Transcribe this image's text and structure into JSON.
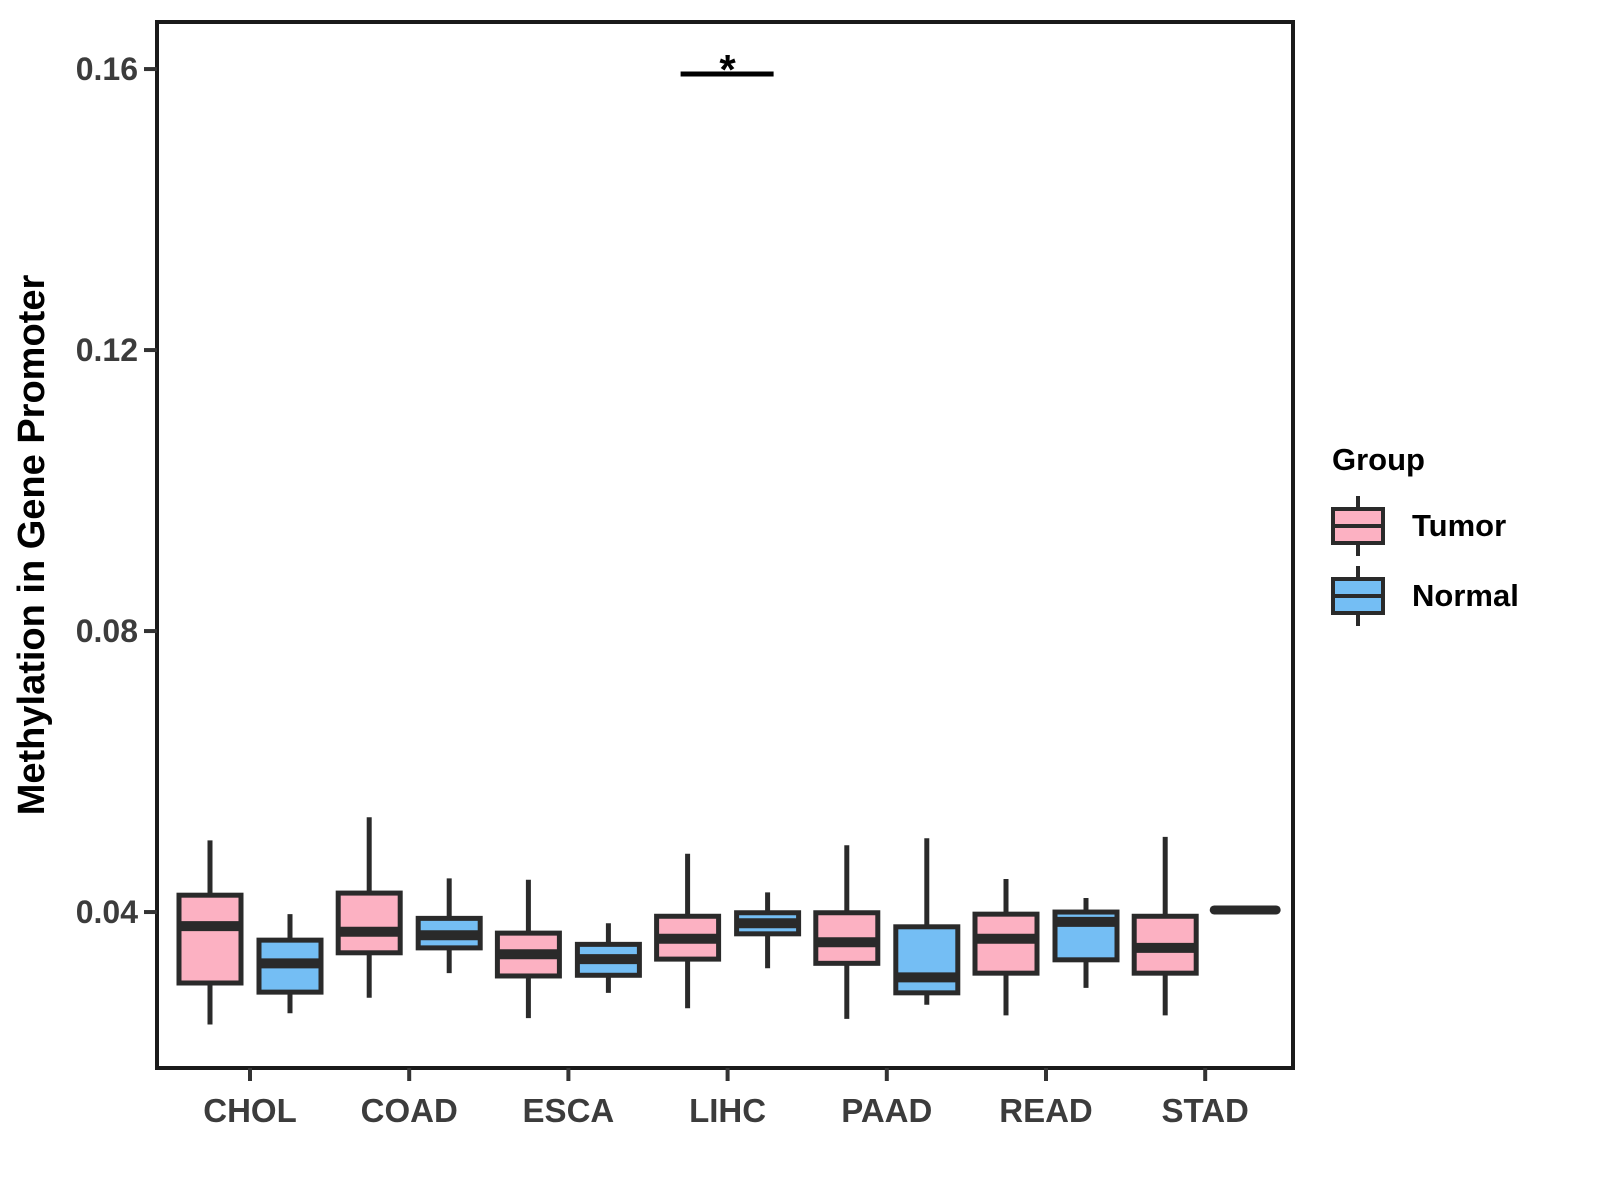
{
  "figure": {
    "background": "#FFFFFF"
  },
  "chart_data": {
    "type": "grouped_boxplot",
    "title": "",
    "xlabel": "",
    "ylabel": "Methylation in Gene Promoter",
    "categories": [
      "CHOL",
      "COAD",
      "ESCA",
      "LIHC",
      "PAAD",
      "READ",
      "STAD"
    ],
    "y_ticks": [
      0.04,
      0.08,
      0.12,
      0.16
    ],
    "y_tick_labels": [
      "0.04",
      "0.08",
      "0.12",
      "0.16"
    ],
    "ylim": [
      0.0178,
      0.1667
    ],
    "grid": false,
    "legend": {
      "title": "Group",
      "position": "right",
      "entries": [
        {
          "label": "Tumor",
          "color": "#FCB1C2"
        },
        {
          "label": "Normal",
          "color": "#74BEF4"
        }
      ]
    },
    "series": [
      {
        "name": "Tumor",
        "color": "#FCB1C2",
        "boxes": [
          {
            "category": "CHOL",
            "min": 0.024,
            "q1": 0.0299,
            "median": 0.038,
            "q3": 0.0424,
            "max": 0.0502
          },
          {
            "category": "COAD",
            "min": 0.0278,
            "q1": 0.0342,
            "median": 0.0372,
            "q3": 0.0427,
            "max": 0.0535
          },
          {
            "category": "ESCA",
            "min": 0.0249,
            "q1": 0.0309,
            "median": 0.034,
            "q3": 0.037,
            "max": 0.0446
          },
          {
            "category": "LIHC",
            "min": 0.0263,
            "q1": 0.0333,
            "median": 0.0362,
            "q3": 0.0394,
            "max": 0.0483
          },
          {
            "category": "PAAD",
            "min": 0.0248,
            "q1": 0.0327,
            "median": 0.0357,
            "q3": 0.0399,
            "max": 0.0495
          },
          {
            "category": "READ",
            "min": 0.0253,
            "q1": 0.0313,
            "median": 0.0362,
            "q3": 0.0397,
            "max": 0.0447
          },
          {
            "category": "STAD",
            "min": 0.0253,
            "q1": 0.0313,
            "median": 0.0349,
            "q3": 0.0394,
            "max": 0.0507
          }
        ]
      },
      {
        "name": "Normal",
        "color": "#74BEF4",
        "boxes": [
          {
            "category": "CHOL",
            "min": 0.0256,
            "q1": 0.0286,
            "median": 0.0327,
            "q3": 0.036,
            "max": 0.0397
          },
          {
            "category": "COAD",
            "min": 0.0313,
            "q1": 0.0349,
            "median": 0.0367,
            "q3": 0.0391,
            "max": 0.0448
          },
          {
            "category": "ESCA",
            "min": 0.0285,
            "q1": 0.031,
            "median": 0.0333,
            "q3": 0.0354,
            "max": 0.0384
          },
          {
            "category": "LIHC",
            "min": 0.032,
            "q1": 0.0369,
            "median": 0.0384,
            "q3": 0.0399,
            "max": 0.0428
          },
          {
            "category": "PAAD",
            "min": 0.0268,
            "q1": 0.0285,
            "median": 0.0307,
            "q3": 0.0379,
            "max": 0.0505
          },
          {
            "category": "READ",
            "min": 0.0292,
            "q1": 0.0332,
            "median": 0.0386,
            "q3": 0.04,
            "max": 0.042
          },
          {
            "category": "STAD",
            "min": 0.0403,
            "q1": 0.0403,
            "median": 0.0403,
            "q3": 0.0403,
            "max": 0.0403
          }
        ]
      }
    ],
    "annotations": [
      {
        "type": "significance",
        "label": "*",
        "category": "LIHC",
        "y": 0.1593
      }
    ]
  },
  "style": {
    "panel_background": "#FFFFFF",
    "panel_border": "#1A1A1A",
    "box_stroke": "#2A2A2A",
    "tick_color": "#333333",
    "tick_label_color": "#3C3C3C",
    "axis_title_color": "#000000",
    "annotation_color": "#000000"
  }
}
